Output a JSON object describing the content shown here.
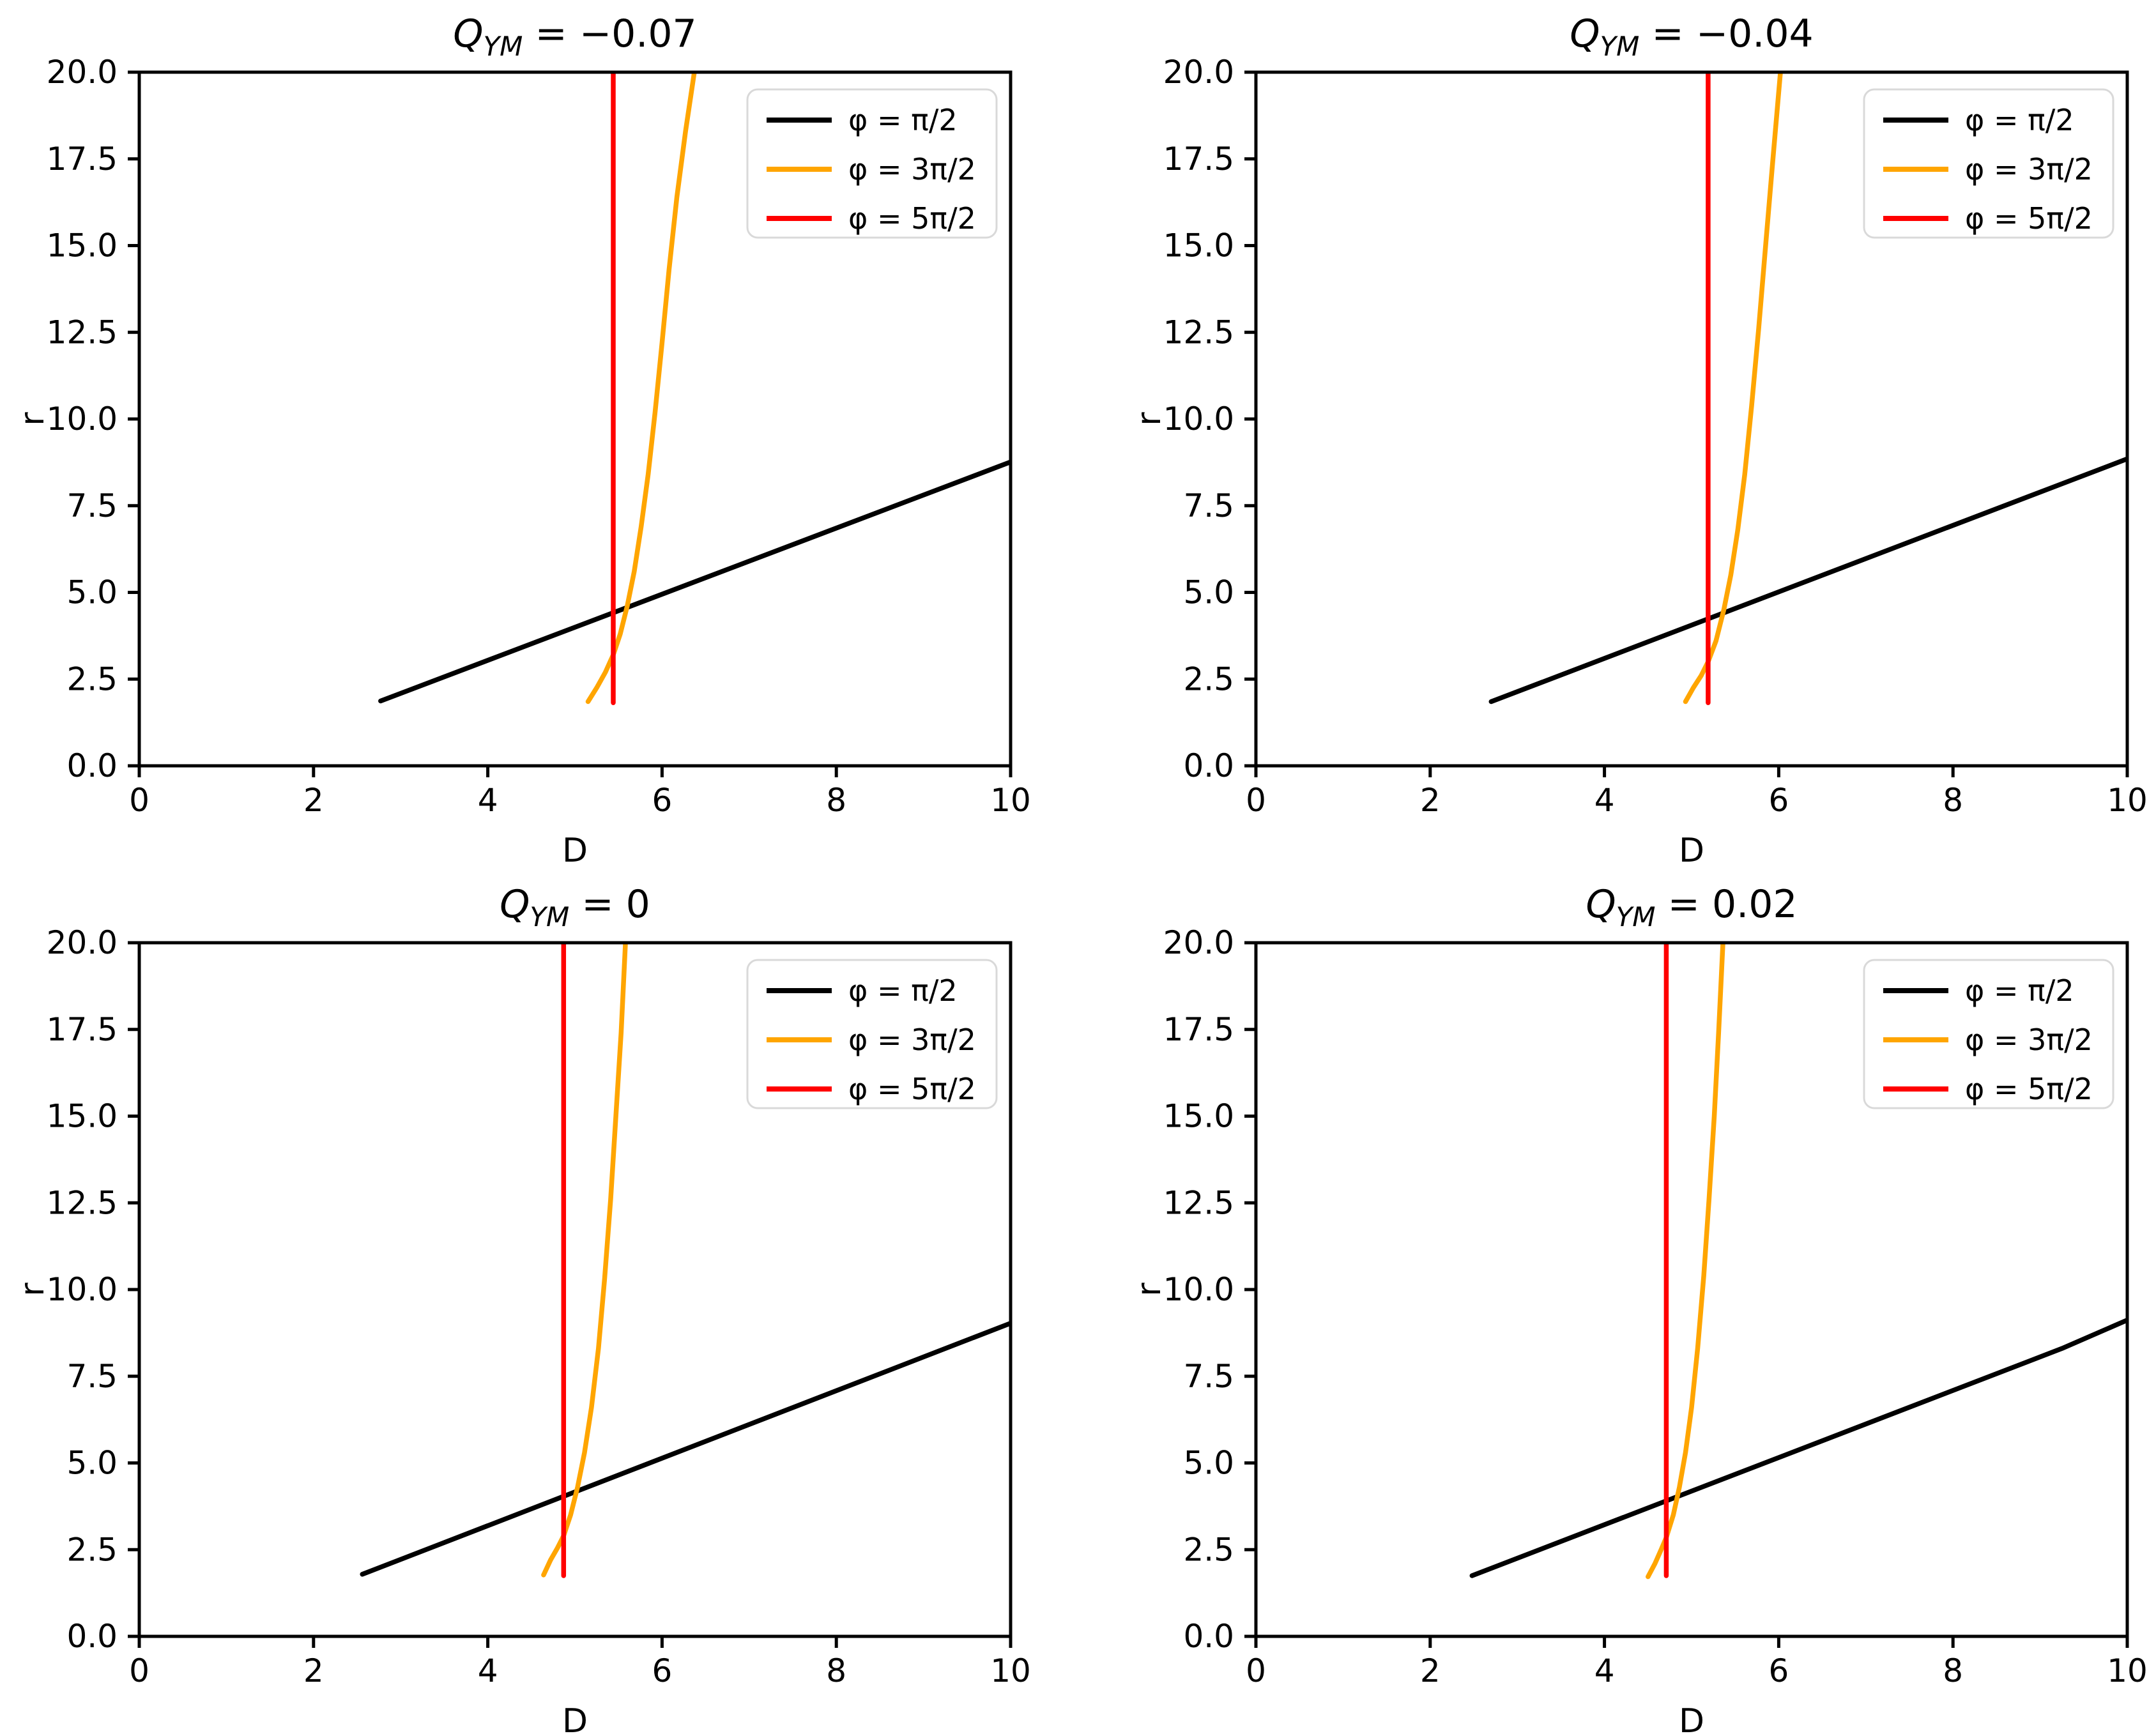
{
  "figure": {
    "background": "#ffffff",
    "rows": 2,
    "cols": 2
  },
  "colors": {
    "black_series": "#000000",
    "orange_series": "#FFA500",
    "red_series": "#FF0000",
    "legend_edge": "#d9d9d9",
    "spine": "#000000"
  },
  "chart_data": [
    {
      "type": "line",
      "title": {
        "var": "Q",
        "sub": "YM",
        "rhs": " = −0.07"
      },
      "xlabel": "D",
      "ylabel": "r",
      "xlim": [
        0,
        10
      ],
      "ylim": [
        0,
        20
      ],
      "xticks": [
        0,
        2,
        4,
        6,
        8,
        10
      ],
      "xtick_labels": [
        "0",
        "2",
        "4",
        "6",
        "8",
        "10"
      ],
      "yticks": [
        0,
        2.5,
        5,
        7.5,
        10,
        12.5,
        15,
        17.5,
        20
      ],
      "ytick_labels": [
        "0.0",
        "2.5",
        "5.0",
        "7.5",
        "10.0",
        "12.5",
        "15.0",
        "17.5",
        "20.0"
      ],
      "grid": false,
      "legend_position": "upper right",
      "series": [
        {
          "name": "φ = π/2",
          "color": "#000000",
          "points": [
            [
              2.77,
              1.87
            ],
            [
              10,
              8.76
            ]
          ]
        },
        {
          "name": "φ = 3π/2",
          "color": "#FFA500",
          "points": [
            [
              5.15,
              1.85
            ],
            [
              5.25,
              2.25
            ],
            [
              5.35,
              2.7
            ],
            [
              5.44,
              3.2
            ],
            [
              5.52,
              3.8
            ],
            [
              5.6,
              4.6
            ],
            [
              5.68,
              5.6
            ],
            [
              5.76,
              6.9
            ],
            [
              5.84,
              8.4
            ],
            [
              5.92,
              10.2
            ],
            [
              6.0,
              12.2
            ],
            [
              6.08,
              14.3
            ],
            [
              6.17,
              16.4
            ],
            [
              6.27,
              18.3
            ],
            [
              6.37,
              20.0
            ]
          ]
        },
        {
          "name": "φ = 5π/2",
          "color": "#FF0000",
          "points": [
            [
              5.44,
              1.82
            ],
            [
              5.44,
              20
            ]
          ]
        }
      ]
    },
    {
      "type": "line",
      "title": {
        "var": "Q",
        "sub": "YM",
        "rhs": " = −0.04"
      },
      "xlabel": "D",
      "ylabel": "r",
      "xlim": [
        0,
        10
      ],
      "ylim": [
        0,
        20
      ],
      "xticks": [
        0,
        2,
        4,
        6,
        8,
        10
      ],
      "xtick_labels": [
        "0",
        "2",
        "4",
        "6",
        "8",
        "10"
      ],
      "yticks": [
        0,
        2.5,
        5,
        7.5,
        10,
        12.5,
        15,
        17.5,
        20
      ],
      "ytick_labels": [
        "0.0",
        "2.5",
        "5.0",
        "7.5",
        "10.0",
        "12.5",
        "15.0",
        "17.5",
        "20.0"
      ],
      "grid": false,
      "legend_position": "upper right",
      "series": [
        {
          "name": "φ = π/2",
          "color": "#000000",
          "points": [
            [
              2.7,
              1.85
            ],
            [
              10,
              8.85
            ]
          ]
        },
        {
          "name": "φ = 3π/2",
          "color": "#FFA500",
          "points": [
            [
              4.93,
              1.85
            ],
            [
              5.02,
              2.25
            ],
            [
              5.11,
              2.6
            ],
            [
              5.19,
              3.0
            ],
            [
              5.28,
              3.6
            ],
            [
              5.37,
              4.5
            ],
            [
              5.45,
              5.5
            ],
            [
              5.53,
              6.8
            ],
            [
              5.61,
              8.4
            ],
            [
              5.69,
              10.4
            ],
            [
              5.77,
              12.6
            ],
            [
              5.85,
              15.0
            ],
            [
              5.93,
              17.4
            ],
            [
              6.02,
              20.0
            ]
          ]
        },
        {
          "name": "φ = 5π/2",
          "color": "#FF0000",
          "points": [
            [
              5.19,
              1.82
            ],
            [
              5.19,
              20
            ]
          ]
        }
      ]
    },
    {
      "type": "line",
      "title": {
        "var": "Q",
        "sub": "YM",
        "rhs": " = 0"
      },
      "xlabel": "D",
      "ylabel": "r",
      "xlim": [
        0,
        10
      ],
      "ylim": [
        0,
        20
      ],
      "xticks": [
        0,
        2,
        4,
        6,
        8,
        10
      ],
      "xtick_labels": [
        "0",
        "2",
        "4",
        "6",
        "8",
        "10"
      ],
      "yticks": [
        0,
        2.5,
        5,
        7.5,
        10,
        12.5,
        15,
        17.5,
        20
      ],
      "ytick_labels": [
        "0.0",
        "2.5",
        "5.0",
        "7.5",
        "10.0",
        "12.5",
        "15.0",
        "17.5",
        "20.0"
      ],
      "grid": false,
      "legend_position": "upper right",
      "series": [
        {
          "name": "φ = π/2",
          "color": "#000000",
          "points": [
            [
              2.56,
              1.79
            ],
            [
              10,
              9.03
            ]
          ]
        },
        {
          "name": "φ = 3π/2",
          "color": "#FFA500",
          "points": [
            [
              4.64,
              1.77
            ],
            [
              4.72,
              2.2
            ],
            [
              4.8,
              2.55
            ],
            [
              4.87,
              2.9
            ],
            [
              4.95,
              3.5
            ],
            [
              5.03,
              4.3
            ],
            [
              5.11,
              5.3
            ],
            [
              5.19,
              6.6
            ],
            [
              5.27,
              8.3
            ],
            [
              5.34,
              10.3
            ],
            [
              5.41,
              12.6
            ],
            [
              5.47,
              15.0
            ],
            [
              5.53,
              17.4
            ],
            [
              5.58,
              20.0
            ]
          ]
        },
        {
          "name": "φ = 5π/2",
          "color": "#FF0000",
          "points": [
            [
              4.87,
              1.75
            ],
            [
              4.87,
              20
            ]
          ]
        }
      ]
    },
    {
      "type": "line",
      "title": {
        "var": "Q",
        "sub": "YM",
        "rhs": " = 0.02"
      },
      "xlabel": "D",
      "ylabel": "r",
      "xlim": [
        0,
        10
      ],
      "ylim": [
        0,
        20
      ],
      "xticks": [
        0,
        2,
        4,
        6,
        8,
        10
      ],
      "xtick_labels": [
        "0",
        "2",
        "4",
        "6",
        "8",
        "10"
      ],
      "yticks": [
        0,
        2.5,
        5,
        7.5,
        10,
        12.5,
        15,
        17.5,
        20
      ],
      "ytick_labels": [
        "0.0",
        "2.5",
        "5.0",
        "7.5",
        "10.0",
        "12.5",
        "15.0",
        "17.5",
        "20.0"
      ],
      "grid": false,
      "legend_position": "upper right",
      "series": [
        {
          "name": "φ = π/2",
          "color": "#000000",
          "points": [
            [
              2.48,
              1.75
            ],
            [
              9.25,
              8.3
            ],
            [
              10,
              9.12
            ]
          ]
        },
        {
          "name": "φ = 3π/2",
          "color": "#FFA500",
          "points": [
            [
              4.5,
              1.72
            ],
            [
              4.58,
              2.1
            ],
            [
              4.65,
              2.5
            ],
            [
              4.71,
              2.85
            ],
            [
              4.79,
              3.5
            ],
            [
              4.86,
              4.3
            ],
            [
              4.93,
              5.3
            ],
            [
              5.0,
              6.6
            ],
            [
              5.07,
              8.3
            ],
            [
              5.14,
              10.4
            ],
            [
              5.2,
              12.6
            ],
            [
              5.26,
              15.0
            ],
            [
              5.31,
              17.4
            ],
            [
              5.36,
              20.0
            ]
          ]
        },
        {
          "name": "φ = 5π/2",
          "color": "#FF0000",
          "points": [
            [
              4.71,
              1.75
            ],
            [
              4.71,
              20
            ]
          ]
        }
      ]
    }
  ]
}
